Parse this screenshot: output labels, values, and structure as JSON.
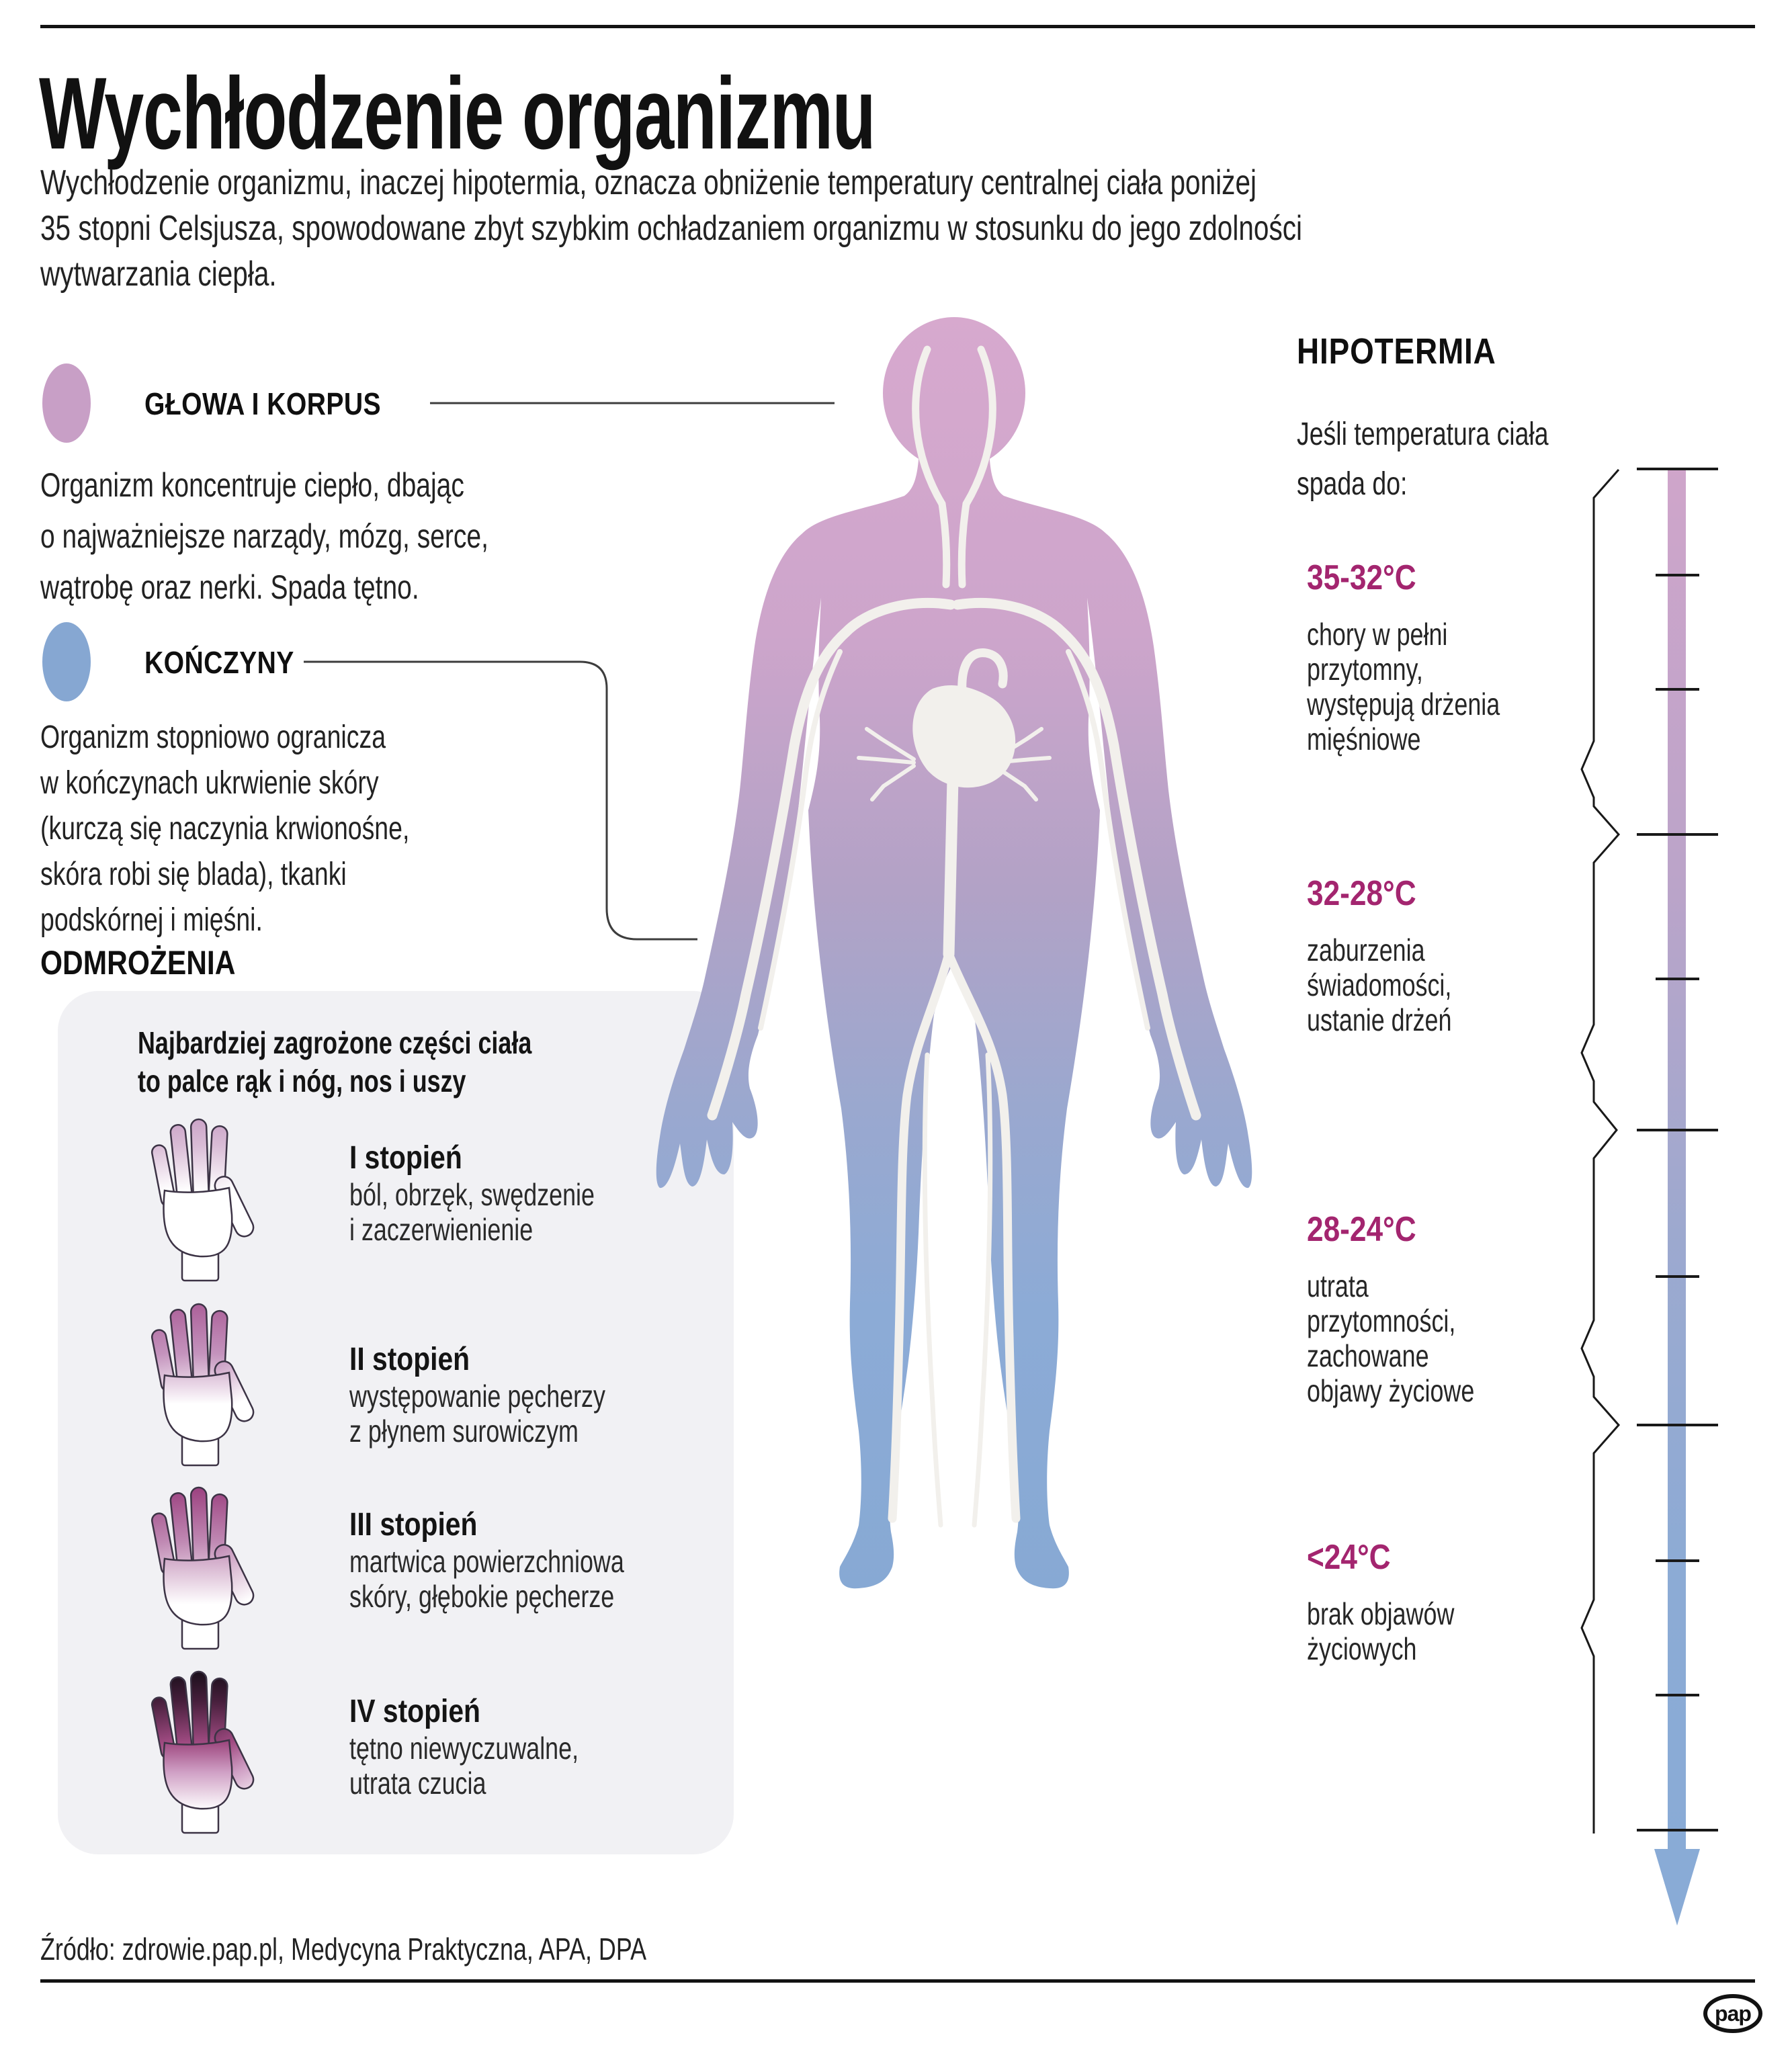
{
  "page": {
    "title": "Wychłodzenie organizmu",
    "intro_lines": [
      "Wychłodzenie organizmu, inaczej hipotermia, oznacza obniżenie temperatury centralnej ciała poniżej",
      "35 stopni Celsjusza, spowodowane zbyt szybkim ochładzaniem organizmu w stosunku do jego zdolności",
      "wytwarzania ciepła."
    ],
    "source": "Źródło: zdrowie.pap.pl, Medycyna Praktyczna, APA, DPA",
    "brand": "pap"
  },
  "colors": {
    "accent_crimson": "#a3256f",
    "bullet_pink": "#c89fc6",
    "bullet_blue": "#86a7d2",
    "body_pink": "#d7a9ce",
    "body_blue": "#87a9d4",
    "box_gray": "#f1f1f4",
    "rule_black": "#121212"
  },
  "icons": {
    "hand": "hand-icon",
    "body": "human-body-silhouette",
    "scale": "temperature-scale-arrow",
    "logo": "pap-logo"
  },
  "sections": {
    "head_torso": {
      "label": "GŁOWA I KORPUS",
      "lines": [
        "Organizm koncentruje ciepło, dbając",
        "o najważniejsze narządy, mózg, serce,",
        "wątrobę oraz nerki. Spada tętno."
      ]
    },
    "limbs": {
      "label": "KOŃCZYNY",
      "lines": [
        "Organizm stopniowo ogranicza",
        "w kończynach ukrwienie skóry",
        "(kurczą się naczynia krwionośne,",
        "skóra robi się blada), tkanki",
        "podskórnej i mięśni."
      ]
    },
    "frostbite": {
      "label": "ODMROŻENIA",
      "intro_lines": [
        "Najbardziej zagrożone części ciała",
        "to palce rąk i nóg, nos i uszy"
      ],
      "degrees": [
        {
          "label": "I stopień",
          "lines": [
            "ból, obrzęk, swędzenie",
            "i zaczerwienienie"
          ]
        },
        {
          "label": "II stopień",
          "lines": [
            "występowanie pęcherzy",
            "z płynem surowiczym"
          ]
        },
        {
          "label": "III stopień",
          "lines": [
            "martwica powierzchniowa",
            "skóry, głębokie pęcherze"
          ]
        },
        {
          "label": "IV stopień",
          "lines": [
            "tętno niewyczuwalne,",
            "utrata czucia"
          ]
        }
      ]
    },
    "hypothermia": {
      "label": "HIPOTERMIA",
      "intro_lines": [
        "Jeśli temperatura ciała",
        "spada do:"
      ],
      "stages": [
        {
          "temp": "35-32°C",
          "lines": [
            "chory w pełni",
            "przytomny,",
            "występują drżenia",
            "mięśniowe"
          ]
        },
        {
          "temp": "32-28°C",
          "lines": [
            "zaburzenia",
            "świadomości,",
            "ustanie drżeń"
          ]
        },
        {
          "temp": "28-24°C",
          "lines": [
            "utrata",
            "przytomności,",
            "zachowane",
            "objawy życiowe"
          ]
        },
        {
          "temp": "<24°C",
          "lines": [
            "brak objawów",
            "życiowych"
          ]
        }
      ]
    }
  }
}
